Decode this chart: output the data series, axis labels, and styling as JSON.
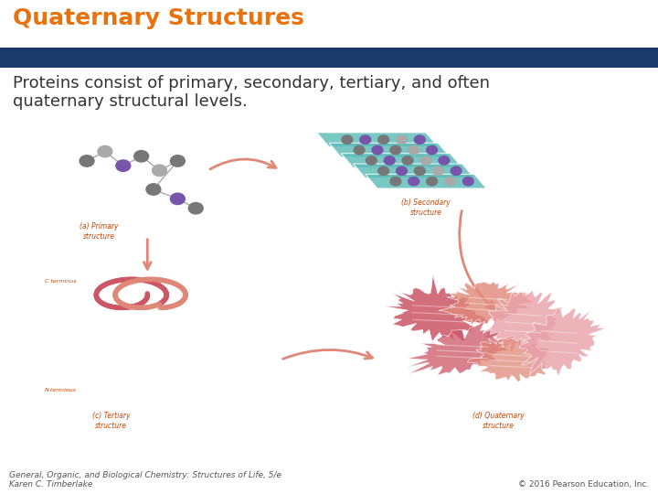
{
  "title": "Quaternary Structures",
  "title_color": "#E8720C",
  "title_fontsize": 18,
  "banner_color": "#1B3A6B",
  "body_text_line1": "Proteins consist of primary, secondary, tertiary, and often",
  "body_text_line2": "quaternary structural levels.",
  "body_fontsize": 13,
  "body_color": "#333333",
  "footer_left": "General, Organic, and Biological Chemistry: Structures of Life, 5/e\nKaren C. Timberlake",
  "footer_right": "© 2016 Pearson Education, Inc.",
  "footer_fontsize": 6.5,
  "footer_color": "#555555",
  "bg_color": "#FFFFFF",
  "teal": "#5BBCB8",
  "pink": "#CC5566",
  "salmon": "#E08878",
  "light_pink": "#E8A0A8",
  "gray_dark": "#777777",
  "gray_light": "#AAAAAA",
  "purple": "#7755AA",
  "label_color": "#CC4400",
  "arrow_color": "#E08878"
}
